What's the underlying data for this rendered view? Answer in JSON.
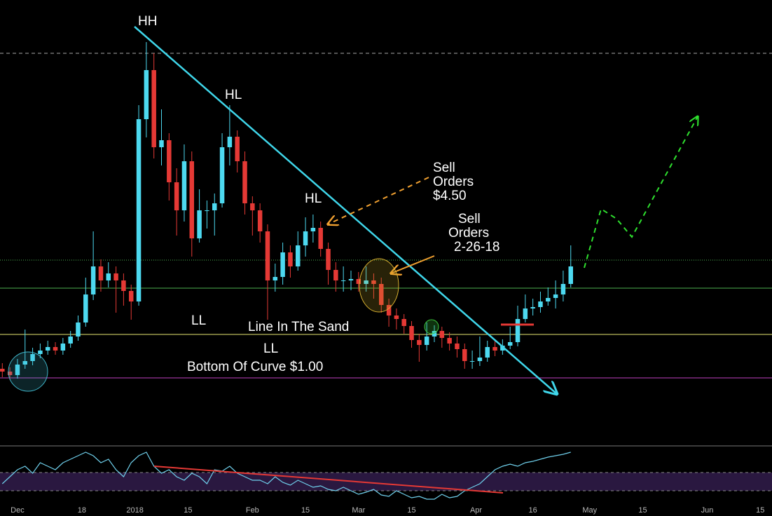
{
  "chart_data": [
    {
      "type": "candlestick",
      "xlim": [
        1.39,
        205.1
      ],
      "ylim": [
        0,
        636
      ],
      "xticks": [
        {
          "value": 6,
          "label": "Dec"
        },
        {
          "value": 23,
          "label": "18"
        },
        {
          "value": 37,
          "label": "2018"
        },
        {
          "value": 51,
          "label": "15"
        },
        {
          "value": 68,
          "label": "Feb"
        },
        {
          "value": 82,
          "label": "15"
        },
        {
          "value": 96,
          "label": "Mar"
        },
        {
          "value": 110,
          "label": "15"
        },
        {
          "value": 127,
          "label": "Apr"
        },
        {
          "value": 142,
          "label": "16"
        },
        {
          "value": 157,
          "label": "May"
        },
        {
          "value": 171,
          "label": "15"
        },
        {
          "value": 188,
          "label": "Jun"
        },
        {
          "value": 202,
          "label": "15"
        }
      ],
      "up_color": "#4dd9f0",
      "down_color": "#e53935",
      "x": [
        2,
        4,
        6,
        8,
        10,
        12,
        14,
        16,
        18,
        20,
        22,
        24,
        26,
        28,
        30,
        32,
        34,
        36,
        38,
        40,
        42,
        44,
        46,
        48,
        50,
        52,
        54,
        56,
        58,
        60,
        62,
        64,
        66,
        68,
        70,
        72,
        74,
        76,
        78,
        80,
        82,
        84,
        86,
        88,
        90,
        92,
        94,
        96,
        98,
        100,
        102,
        104,
        106,
        108,
        110,
        112,
        114,
        116,
        118,
        120,
        122,
        124,
        126,
        128,
        130,
        132,
        134,
        136,
        138,
        140,
        142,
        144,
        146,
        148,
        150,
        152
      ],
      "open": [
        110,
        106,
        101,
        116,
        121,
        131,
        136,
        141,
        136,
        146,
        156,
        176,
        216,
        256,
        236,
        246,
        236,
        221,
        206,
        466,
        536,
        426,
        436,
        376,
        336,
        406,
        296,
        336,
        336,
        346,
        426,
        441,
        406,
        346,
        336,
        306,
        236,
        241,
        276,
        256,
        286,
        306,
        311,
        281,
        251,
        236,
        236,
        238,
        231,
        236,
        231,
        201,
        186,
        181,
        171,
        151,
        144,
        156,
        164,
        154,
        146,
        138,
        121,
        121,
        126,
        141,
        136,
        143,
        148,
        181,
        196,
        198,
        206,
        211,
        216,
        231
      ],
      "high": [
        118,
        112,
        124,
        166,
        140,
        146,
        150,
        148,
        154,
        164,
        186,
        240,
        306,
        266,
        262,
        256,
        246,
        230,
        486,
        576,
        560,
        480,
        446,
        396,
        430,
        420,
        366,
        350,
        360,
        446,
        486,
        450,
        420,
        356,
        346,
        316,
        260,
        290,
        286,
        306,
        326,
        330,
        320,
        290,
        262,
        256,
        250,
        248,
        256,
        246,
        240,
        210,
        196,
        188,
        178,
        160,
        176,
        172,
        170,
        162,
        156,
        146,
        136,
        156,
        150,
        150,
        152,
        170,
        200,
        216,
        210,
        220,
        226,
        236,
        250,
        286
      ],
      "low": [
        98,
        94,
        96,
        110,
        115,
        125,
        130,
        130,
        130,
        140,
        150,
        170,
        208,
        220,
        226,
        190,
        200,
        180,
        200,
        440,
        410,
        400,
        350,
        300,
        320,
        270,
        290,
        310,
        300,
        340,
        400,
        390,
        330,
        300,
        290,
        180,
        220,
        230,
        240,
        250,
        270,
        290,
        270,
        230,
        220,
        220,
        222,
        220,
        220,
        210,
        190,
        170,
        166,
        160,
        140,
        120,
        136,
        148,
        140,
        136,
        126,
        110,
        110,
        114,
        120,
        128,
        130,
        138,
        142,
        176,
        186,
        190,
        200,
        196,
        206,
        226
      ],
      "close": [
        106,
        101,
        116,
        121,
        131,
        136,
        141,
        136,
        146,
        156,
        176,
        216,
        256,
        236,
        246,
        236,
        221,
        206,
        466,
        536,
        426,
        436,
        376,
        336,
        406,
        296,
        336,
        336,
        346,
        426,
        441,
        406,
        346,
        336,
        306,
        236,
        241,
        276,
        256,
        286,
        306,
        311,
        281,
        251,
        236,
        236,
        238,
        231,
        236,
        231,
        201,
        186,
        181,
        171,
        151,
        144,
        156,
        164,
        154,
        146,
        138,
        121,
        121,
        126,
        141,
        136,
        143,
        148,
        181,
        196,
        198,
        206,
        211,
        216,
        231,
        256
      ],
      "annotations": [
        "HH",
        "HL",
        "HL",
        "LL",
        "LL",
        "Line In The Sand",
        "Bottom Of Curve $1.00",
        "Sell",
        "Orders",
        "$4.50",
        "Sell",
        "Orders",
        "2-26-18"
      ]
    },
    {
      "type": "line",
      "color": "#6fd0ec",
      "xlim": [
        1.39,
        205.1
      ],
      "ylim": [
        0,
        100
      ],
      "x": [
        2,
        4,
        6,
        8,
        10,
        12,
        14,
        16,
        18,
        20,
        22,
        24,
        26,
        28,
        30,
        32,
        34,
        36,
        38,
        40,
        42,
        44,
        46,
        48,
        50,
        52,
        54,
        56,
        58,
        60,
        62,
        64,
        66,
        68,
        70,
        72,
        74,
        76,
        78,
        80,
        82,
        84,
        86,
        88,
        90,
        92,
        94,
        96,
        98,
        100,
        102,
        104,
        106,
        108,
        110,
        112,
        114,
        116,
        118,
        120,
        122,
        124,
        126,
        128,
        130,
        132,
        134,
        136,
        138,
        140,
        142,
        144,
        146,
        148,
        150,
        152
      ],
      "values": [
        37.5,
        50,
        62.5,
        68.75,
        56.25,
        75,
        68.75,
        62.5,
        75,
        81.25,
        87.5,
        93.75,
        87.5,
        75,
        81.25,
        62.5,
        50,
        75,
        87.5,
        93.75,
        68.75,
        56.25,
        62.5,
        50,
        43.75,
        56.25,
        50,
        37.5,
        62.5,
        60,
        68.75,
        56.25,
        50,
        43.75,
        43.75,
        37.5,
        50,
        40,
        35,
        43.75,
        37.5,
        31.25,
        33.75,
        27.5,
        25,
        31.25,
        25,
        18.75,
        22.5,
        27.5,
        17.5,
        15,
        25,
        18.75,
        12.5,
        15,
        10,
        10,
        18.75,
        12.5,
        15,
        25,
        31.25,
        37.5,
        50,
        62.5,
        68.75,
        72.5,
        68.75,
        75,
        77.5,
        81.25,
        85,
        87.5,
        90,
        93.75
      ]
    }
  ]
}
